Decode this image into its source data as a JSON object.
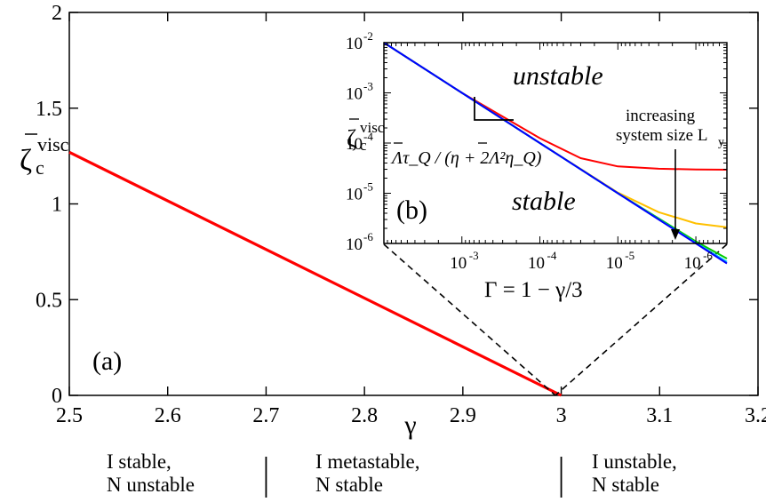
{
  "chart_data": [
    {
      "type": "line",
      "panel_label": "(a)",
      "xlabel": "γ",
      "ylabel": {
        "base": "ζ",
        "sub": "c",
        "sup": "visc"
      },
      "xlim": [
        2.5,
        3.2
      ],
      "ylim": [
        0,
        2
      ],
      "xticks": [
        "2.5",
        "2.6",
        "2.7",
        "2.8",
        "2.9",
        "3",
        "3.1",
        "3.2"
      ],
      "yticks": [
        "0",
        "0.5",
        "1",
        "1.5",
        "2"
      ],
      "grid": false,
      "series": [
        {
          "color": "#ff0000",
          "x": [
            2.5,
            3.0
          ],
          "y": [
            1.27,
            0.0
          ]
        }
      ],
      "regimes": [
        {
          "line1": "I stable,",
          "line2": "N unstable"
        },
        {
          "line1": "I metastable,",
          "line2": "N stable"
        },
        {
          "line1": "I unstable,",
          "line2": "N stable"
        }
      ],
      "regime_dividers_x": [
        2.7,
        3.0
      ]
    },
    {
      "type": "line",
      "panel_label": "(b)",
      "scale": "log-log",
      "xlabel": "Γ = 1 − γ/3",
      "ylabel": {
        "base": "ζ",
        "sub": "c",
        "sup": "visc"
      },
      "xlim": [
        0.01,
        4e-07
      ],
      "ylim": [
        1e-06,
        0.01
      ],
      "xticks": [
        {
          "mant": "10",
          "exp": "-3"
        },
        {
          "mant": "10",
          "exp": "-4"
        },
        {
          "mant": "10",
          "exp": "-5"
        },
        {
          "mant": "10",
          "exp": "-6"
        }
      ],
      "yticks": [
        {
          "mant": "10",
          "exp": "-6"
        },
        {
          "mant": "10",
          "exp": "-5"
        },
        {
          "mant": "10",
          "exp": "-4"
        },
        {
          "mant": "10",
          "exp": "-3"
        },
        {
          "mant": "10",
          "exp": "-2"
        }
      ],
      "region_labels": {
        "upper": "unstable",
        "lower": "stable"
      },
      "slope_label": "Λτ_Q / (η + 2Λ²η_Q)",
      "arrow_label": {
        "line1": "increasing",
        "line2": "system size L",
        "sub": "y"
      },
      "series": [
        {
          "color": "#ff0000",
          "x": [
            0.01,
            0.001,
            0.0001,
            3e-05,
            1e-05,
            3e-06,
            1e-06,
            4e-07
          ],
          "y": [
            0.01,
            0.001,
            0.000125,
            5e-05,
            3.43e-05,
            3.08e-05,
            2.98e-05,
            2.95e-05
          ]
        },
        {
          "color": "#ffc000",
          "x": [
            0.01,
            0.001,
            0.0001,
            1e-05,
            3e-06,
            1e-06,
            4e-07
          ],
          "y": [
            0.01,
            0.001,
            0.0001,
            1.03e-05,
            4.2e-06,
            2.5e-06,
            2.1e-06
          ]
        },
        {
          "color": "#00cc00",
          "x": [
            0.01,
            0.001,
            0.0001,
            1e-05,
            1e-06,
            4e-07
          ],
          "y": [
            0.01,
            0.001,
            0.0001,
            1e-05,
            1.1e-06,
            5e-07
          ]
        },
        {
          "color": "#00bfff",
          "x": [
            0.01,
            0.001,
            0.0001,
            1e-05,
            1e-06,
            4e-07
          ],
          "y": [
            0.01,
            0.001,
            0.0001,
            1e-05,
            1.02e-06,
            4.3e-07
          ]
        },
        {
          "color": "#0000ff",
          "x": [
            0.01,
            0.001,
            0.0001,
            1e-05,
            1e-06,
            4e-07
          ],
          "y": [
            0.01,
            0.001,
            0.0001,
            1e-05,
            1e-06,
            4e-07
          ]
        }
      ]
    }
  ]
}
